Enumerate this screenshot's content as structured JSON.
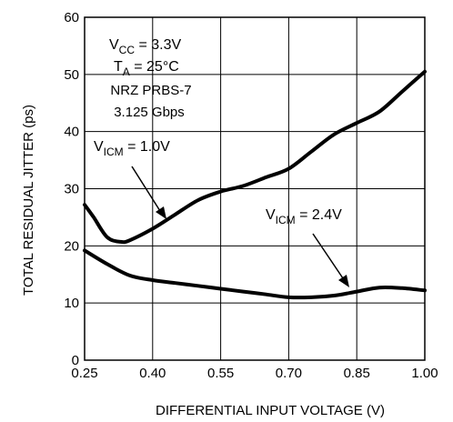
{
  "chart_data": {
    "type": "line",
    "title": "",
    "xlabel": "DIFFERENTIAL INPUT VOLTAGE (V)",
    "ylabel": "TOTAL RESIDUAL JITTER (ps)",
    "xlim": [
      0.25,
      1.0
    ],
    "ylim": [
      0,
      60
    ],
    "x_ticks": [
      0.25,
      0.4,
      0.55,
      0.7,
      0.85,
      1.0
    ],
    "x_tick_labels": [
      "0.25",
      "0.40",
      "0.55",
      "0.70",
      "0.85",
      "1.00"
    ],
    "y_ticks": [
      0,
      10,
      20,
      30,
      40,
      50,
      60
    ],
    "y_tick_labels": [
      "0",
      "10",
      "20",
      "30",
      "40",
      "50",
      "60"
    ],
    "grid": true,
    "conditions": {
      "vcc": {
        "main": "V",
        "sub": "CC",
        "rest": " = 3.3V"
      },
      "ta": {
        "main": "T",
        "sub": "A",
        "rest": " = 25°C"
      },
      "pattern": "NRZ PRBS-7",
      "rate": "3.125 Gbps"
    },
    "series": [
      {
        "label": {
          "main": "V",
          "sub": "ICM",
          "rest": " = 1.0V"
        },
        "x": [
          0.25,
          0.27,
          0.3,
          0.33,
          0.35,
          0.4,
          0.45,
          0.5,
          0.55,
          0.6,
          0.65,
          0.7,
          0.75,
          0.8,
          0.85,
          0.9,
          0.95,
          1.0
        ],
        "y": [
          27.2,
          25.0,
          21.5,
          20.7,
          21.0,
          23.0,
          25.5,
          28.0,
          29.5,
          30.5,
          32.0,
          33.5,
          36.5,
          39.5,
          41.5,
          43.5,
          47.0,
          50.5
        ]
      },
      {
        "label": {
          "main": "V",
          "sub": "ICM",
          "rest": " = 2.4V"
        },
        "x": [
          0.25,
          0.3,
          0.35,
          0.4,
          0.45,
          0.5,
          0.55,
          0.6,
          0.65,
          0.7,
          0.75,
          0.8,
          0.85,
          0.9,
          0.95,
          1.0
        ],
        "y": [
          19.2,
          16.8,
          14.8,
          14.0,
          13.5,
          13.0,
          12.5,
          12.0,
          11.5,
          11.0,
          11.0,
          11.3,
          12.0,
          12.7,
          12.6,
          12.2
        ]
      }
    ]
  }
}
